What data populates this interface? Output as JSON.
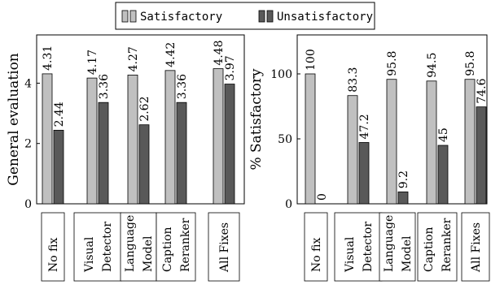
{
  "legend": [
    {
      "label": "Satisfactory",
      "color": "#c0c0c0"
    },
    {
      "label": "Unsatisfactory",
      "color": "#595959"
    }
  ],
  "chart_data": [
    {
      "type": "bar",
      "ylabel": "General evaluation",
      "ylim": [
        0,
        5.6
      ],
      "yticks": [
        "0",
        "2",
        "4"
      ],
      "categories": [
        [
          "No fix"
        ],
        [
          "Visual",
          "Detector"
        ],
        [
          "Language",
          "Model"
        ],
        [
          "Caption",
          "Reranker"
        ],
        [
          "All Fixes"
        ]
      ],
      "series": [
        {
          "name": "Satisfactory",
          "values": [
            4.31,
            4.17,
            4.27,
            4.42,
            4.48
          ],
          "labels": [
            "4.31",
            "4.17",
            "4.27",
            "4.42",
            "4.48"
          ]
        },
        {
          "name": "Unsatisfactory",
          "values": [
            2.44,
            3.36,
            2.62,
            3.36,
            3.97
          ],
          "labels": [
            "2.44",
            "3.36",
            "2.62",
            "3.36",
            "3.97"
          ]
        }
      ]
    },
    {
      "type": "bar",
      "ylabel": "% Satisfactory",
      "ylim": [
        0,
        130
      ],
      "yticks": [
        "0",
        "50",
        "100"
      ],
      "categories": [
        [
          "No fix"
        ],
        [
          "Visual",
          "Detector"
        ],
        [
          "Language",
          "Model"
        ],
        [
          "Caption",
          "Reranker"
        ],
        [
          "All Fixes"
        ]
      ],
      "series": [
        {
          "name": "Satisfactory",
          "values": [
            100,
            83.3,
            95.8,
            94.5,
            95.8
          ],
          "labels": [
            "100",
            "83.3",
            "95.8",
            "94.5",
            "95.8"
          ]
        },
        {
          "name": "Unsatisfactory",
          "values": [
            0,
            47.2,
            9.2,
            45,
            74.6
          ],
          "labels": [
            "0",
            "47.2",
            "9.2",
            "45",
            "74.6"
          ]
        }
      ]
    }
  ]
}
